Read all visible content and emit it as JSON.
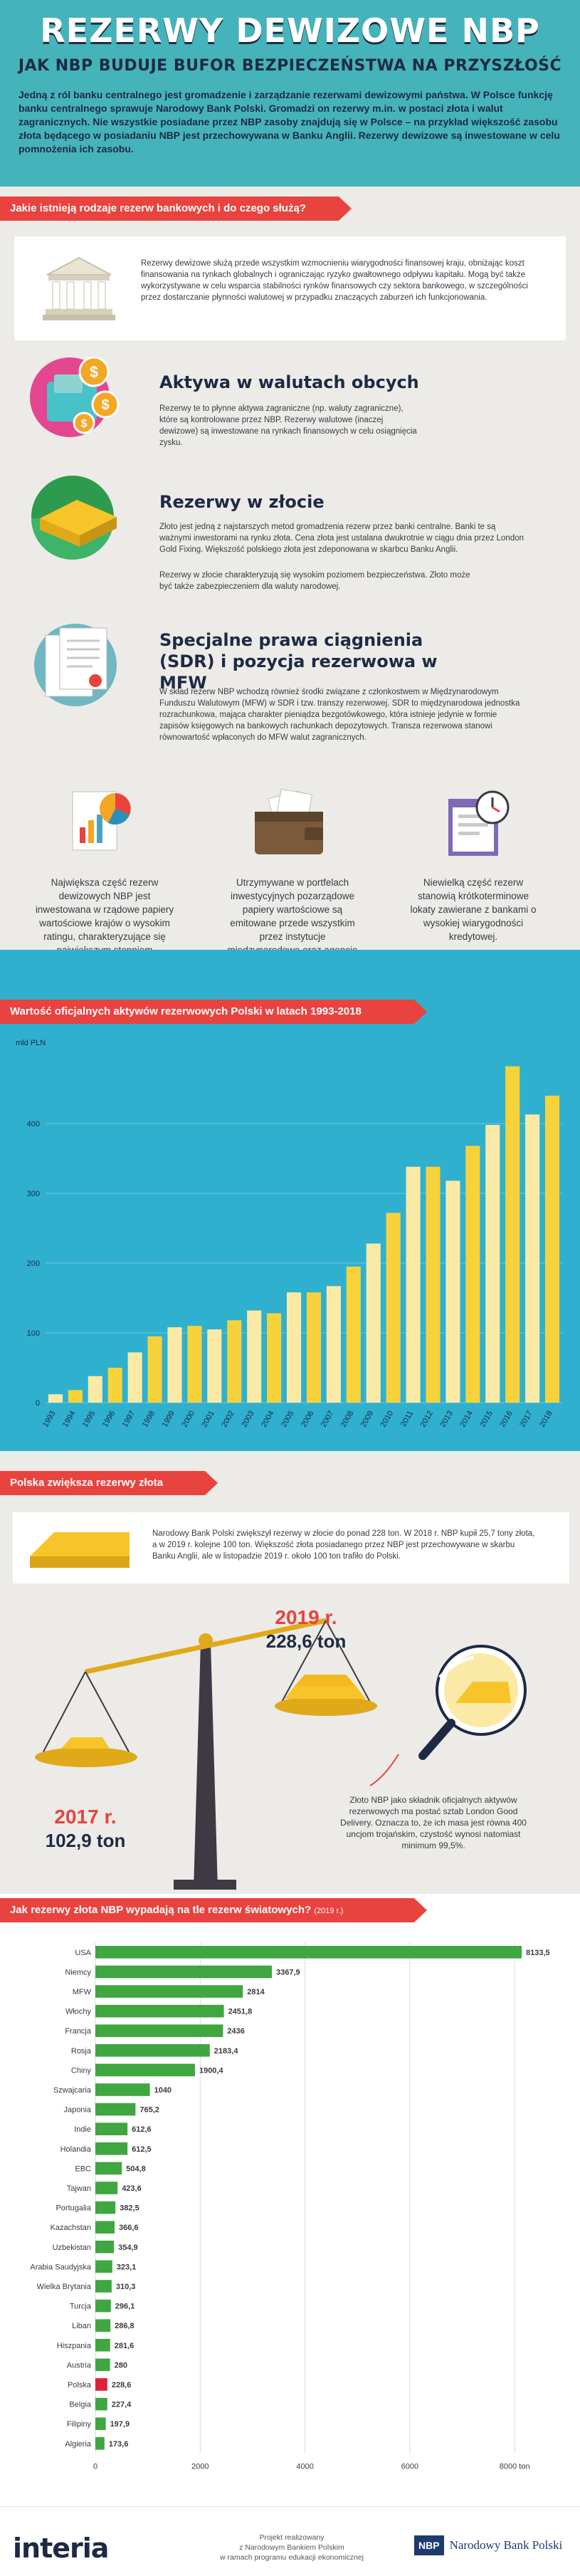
{
  "header": {
    "title": "REZERWY DEWIZOWE NBP",
    "subtitle": "JAK NBP BUDUJE BUFOR BEZPIECZEŃSTWA NA PRZYSZŁOŚĆ",
    "intro": "Jedną z ról banku centralnego jest gromadzenie i zarządzanie rezerwami dewizowymi państwa. W Polsce funkcję banku centralnego sprawuje Narodowy Bank Polski. Gromadzi on rezerwy m.in. w postaci złota i walut zagranicznych. Nie wszystkie posiadane przez NBP zasoby znajdują się w Polsce – na przykład większość zasobu złota będącego w posiadaniu NBP jest przechowywana w Banku Anglii. Rezerwy dewizowe są inwestowane w celu pomnożenia ich zasobu."
  },
  "section1": {
    "heading": "Jakie istnieją rodzaje rezerw bankowych i do czego służą?",
    "box_text": "Rezerwy dewizowe służą przede wszystkim wzmocnieniu wiarygodności finansowej kraju, obniżając koszt finansowania na rynkach globalnych i ograniczając ryzyko gwałtownego odpływu kapitału. Mogą być także wykorzystywane w celu wsparcia stabilności rynków finansowych czy sektora bankowego, w szczególności przez dostarczanie płynności walutowej w przypadku znaczących zaburzeń ich funkcjonowania.",
    "items": [
      {
        "title": "Aktywa w walutach obcych",
        "text": "Rezerwy te to płynne aktywa zagraniczne (np. waluty zagraniczne), które są kontrolowane przez NBP. Rezerwy walutowe (inaczej dewizowe) są inwestowane na rynkach finansowych w celu osiągnięcia zysku."
      },
      {
        "title": "Rezerwy w złocie",
        "text": "Złoto jest jedną z najstarszych metod gromadzenia rezerw przez banki centralne. Banki te są ważnymi inwestorami na rynku złota. Cena złota jest ustalana dwukrotnie w ciągu dnia przez London Gold Fixing. Większość polskiego złota jest zdeponowana w skarbcu Banku Anglii.",
        "text2": "Rezerwy w złocie charakteryzują się wysokim poziomem bezpieczeństwa. Złoto może być także zabezpieczeniem dla waluty narodowej."
      },
      {
        "title": "Specjalne prawa ciągnienia (SDR) i pozycja rezerwowa w MFW",
        "text": "W skład rezerw NBP wchodzą również środki związane z członkostwem w Międzynarodowym Funduszu Walutowym (MFW) w SDR i tzw. transzy rezerwowej. SDR to międzynarodowa jednostka rozrachunkowa, mająca charakter pieniądza bezgotówkowego, która istnieje jedynie w formie zapisów księgowych na bankowych rachunkach depozytowych. Transza rezerwowa stanowi równowartość wpłaconych do MFW walut zagranicznych."
      }
    ],
    "columns": [
      "Największa część rezerw dewizowych NBP jest inwestowana w rządowe papiery wartościowe krajów o wysokim ratingu, charakteryzujące się największym stopniem bezpieczeństwa i płynności.",
      "Utrzymywane w portfelach inwestycyjnych pozarządowe papiery wartościowe są emitowane przede wszystkim przez instytucje międzynarodowe oraz agencje rządowe.",
      "Niewielką część rezerw stanowią krótkoterminowe lokaty zawierane z bankami o wysokiej wiarygodności kredytowej."
    ]
  },
  "section2": {
    "heading": "Wartość oficjalnych aktywów rezerwowych Polski w latach 1993-2018",
    "chart_data": {
      "type": "bar",
      "ylabel": "mld PLN",
      "ylim": [
        0,
        500
      ],
      "yticks": [
        "0",
        "100",
        "200",
        "300",
        "400"
      ],
      "categories": [
        "1993",
        "1994",
        "1995",
        "1996",
        "1997",
        "1998",
        "1999",
        "2000",
        "2001",
        "2002",
        "2003",
        "2004",
        "2005",
        "2006",
        "2007",
        "2008",
        "2009",
        "2010",
        "2011",
        "2012",
        "2013",
        "2014",
        "2015",
        "2016",
        "2017",
        "2018"
      ],
      "values": [
        12,
        18,
        38,
        50,
        72,
        95,
        108,
        110,
        105,
        118,
        132,
        128,
        158,
        158,
        167,
        195,
        228,
        272,
        338,
        338,
        318,
        368,
        398,
        482,
        413,
        440
      ],
      "colors": [
        "#fbe9a6",
        "#f7d23a"
      ]
    }
  },
  "section3": {
    "heading": "Polska zwiększa rezerwy złota",
    "box_text": "Narodowy Bank Polski zwiększył rezerwy w złocie do ponad 228 ton. W 2018 r. NBP kupił 25,7 tony złota, a w 2019 r. kolejne 100 ton. Większość złota posiadanego przez NBP jest przechowywane w skarbu Banku Anglii, ale w listopadzie 2019 r. około 100 ton trafiło do Polski.",
    "right_year": "2019 r.",
    "right_value": "228,6 ton",
    "left_year": "2017 r.",
    "left_value": "102,9 ton",
    "note": "Złoto NBP jako składnik oficjalnych aktywów rezerwowych ma postać sztab London Good Delivery. Oznacza to, że ich masa jest równa 400 uncjom trojańskim, czystość wynosi natomiast minimum 99,5%."
  },
  "section4": {
    "heading": "Jak rezerwy złota NBP wypadają na tle rezerw światowych?",
    "heading_suffix": "(2019 r.)",
    "chart_data": {
      "type": "bar",
      "orientation": "horizontal",
      "xlim": [
        0,
        8500
      ],
      "xticks": [
        "0",
        "2000",
        "4000",
        "6000",
        "8000 ton"
      ],
      "categories": [
        "USA",
        "Niemcy",
        "MFW",
        "Włochy",
        "Francja",
        "Rosja",
        "Chiny",
        "Szwajcaria",
        "Japonia",
        "Indie",
        "Holandia",
        "EBC",
        "Tajwan",
        "Portugalia",
        "Kazachstan",
        "Uzbekistan",
        "Arabia Saudyjska",
        "Wielka Brytania",
        "Turcja",
        "Liban",
        "Hiszpania",
        "Austria",
        "Polska",
        "Belgia",
        "Filipiny",
        "Algieria"
      ],
      "values": [
        8133.5,
        3367.9,
        2814,
        2451.8,
        2436,
        2183.4,
        1900.4,
        1040,
        765.2,
        612.6,
        612.5,
        504.8,
        423.6,
        382.5,
        366.6,
        354.9,
        323.1,
        310.3,
        296.1,
        286.8,
        281.6,
        280,
        228.6,
        227.4,
        197.9,
        173.6
      ],
      "labels": [
        "8133,5",
        "3367,9",
        "2814",
        "2451,8",
        "2436",
        "2183,4",
        "1900,4",
        "1040",
        "765,2",
        "612,6",
        "612,5",
        "504,8",
        "423,6",
        "382,5",
        "366,6",
        "354,9",
        "323,1",
        "310,3",
        "296,1",
        "286,8",
        "281,6",
        "280",
        "228,6",
        "227,4",
        "197,9",
        "173,6"
      ],
      "highlight": "Polska",
      "colors": {
        "bar": "#3fa640",
        "highlight": "#e0203a"
      }
    }
  },
  "footer": {
    "logo_left": "interia",
    "project_text": "Projekt realizowany\nz Narodowym Bankiem Polskim\nw ramach programu edukacji ekonomicznej",
    "nbp_badge": "NBP",
    "nbp_name": "Narodowy Bank Polski"
  },
  "colors": {
    "top_bg": "#45b3ba",
    "mid_bg": "#ecebe7",
    "blue_bg": "#2fb0cf",
    "red_accent": "#e8433f",
    "navy": "#1e2a44",
    "gold": "#f7d23a"
  }
}
